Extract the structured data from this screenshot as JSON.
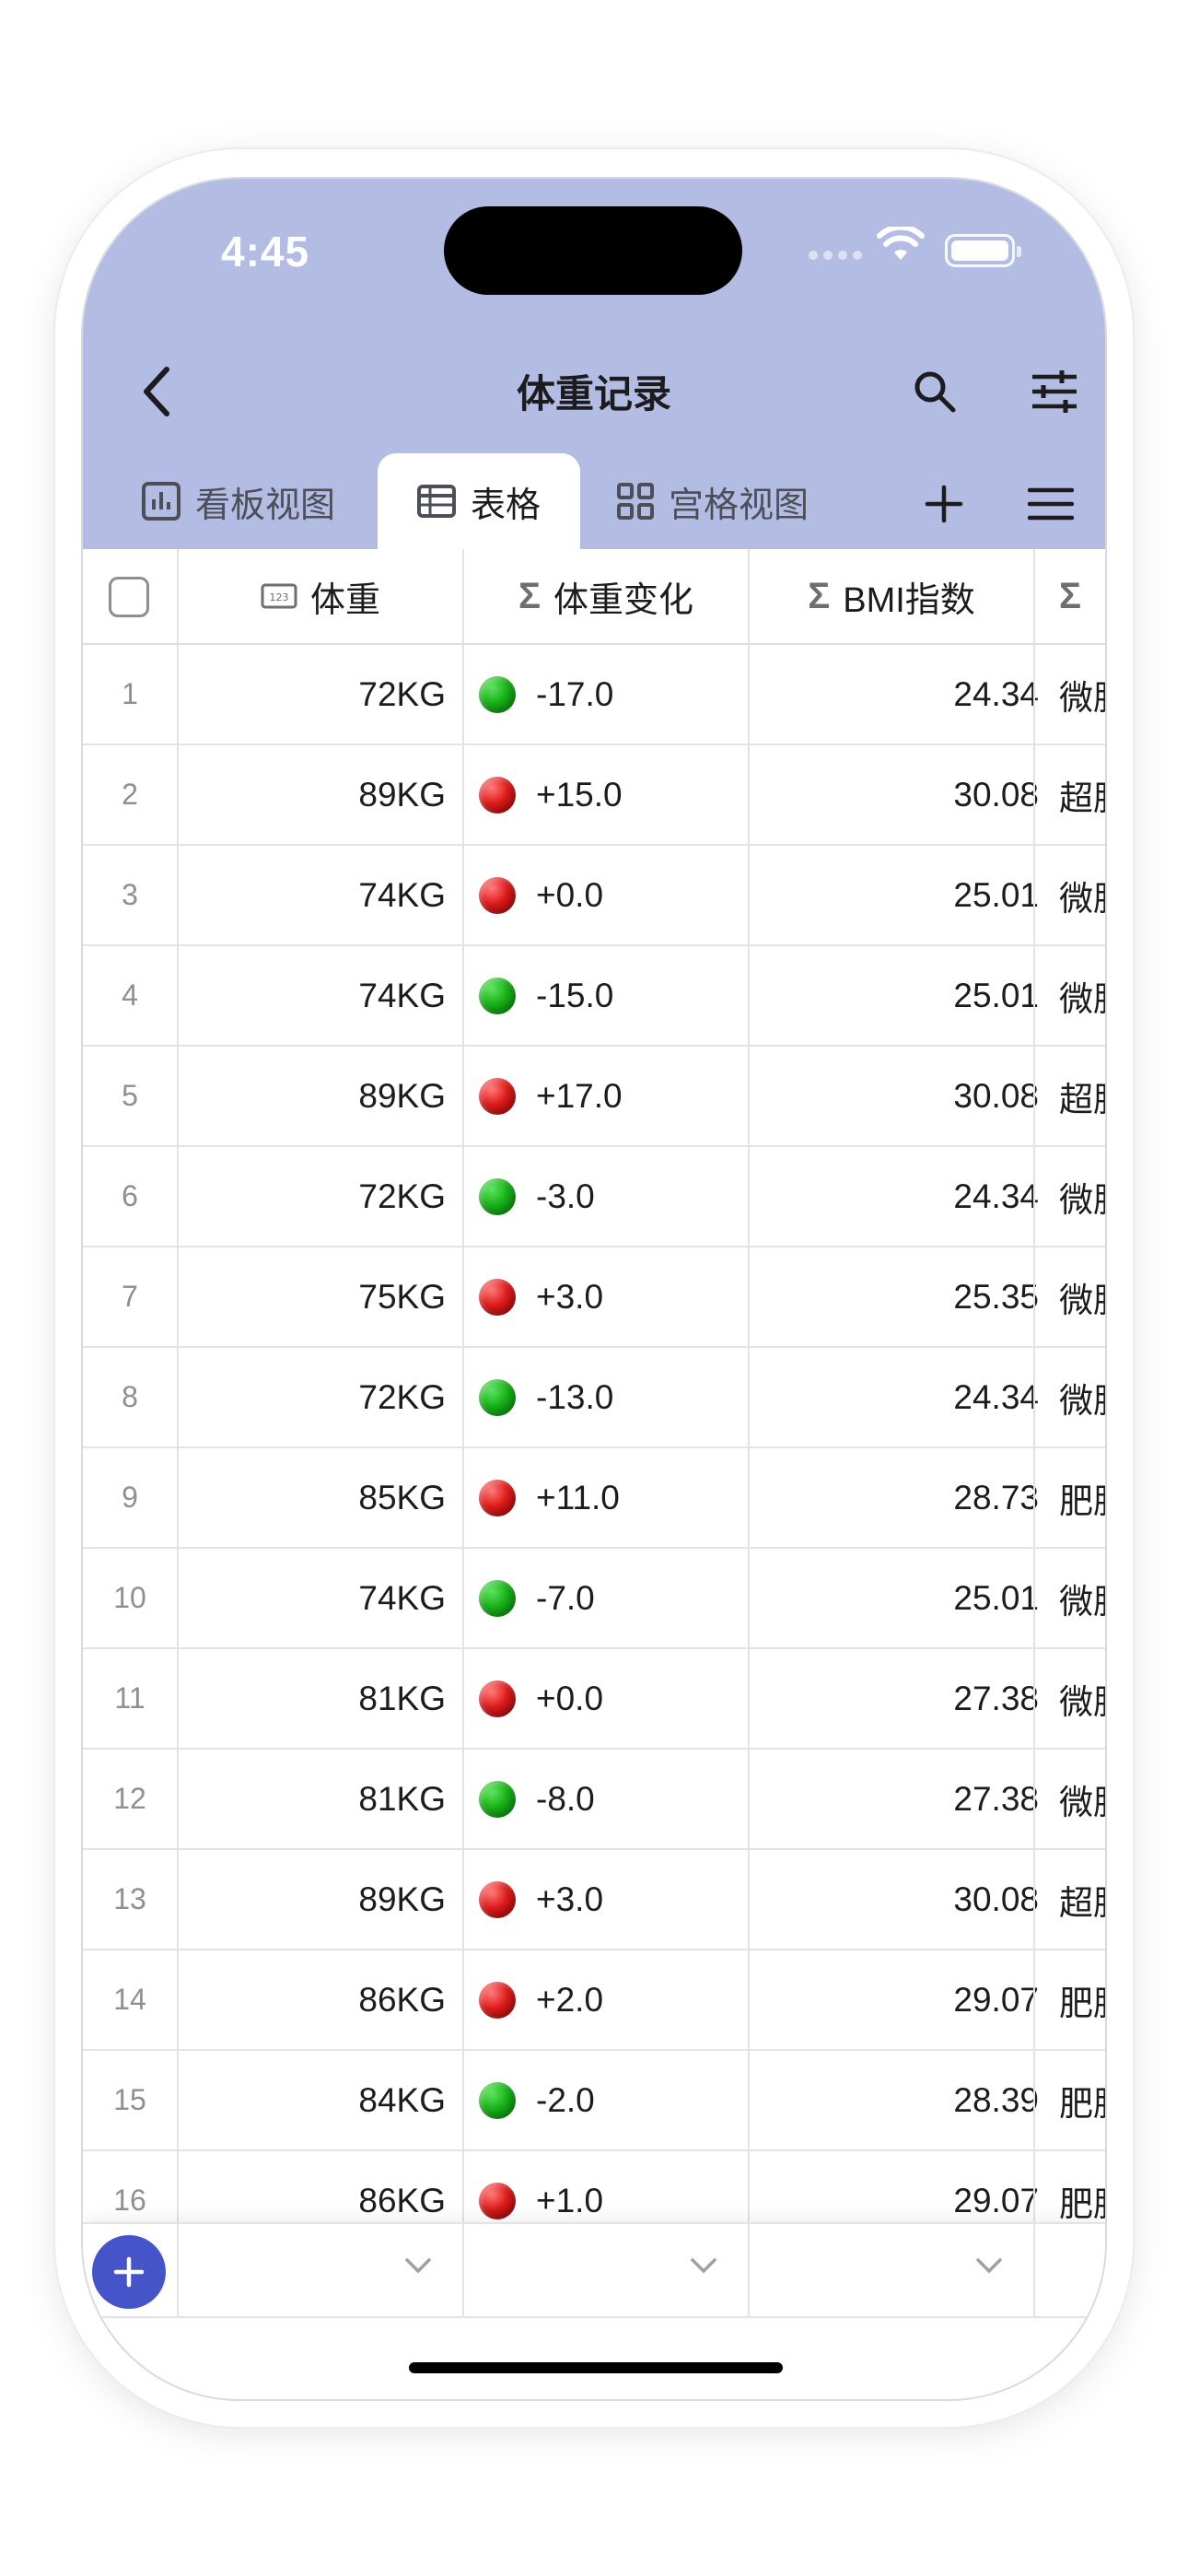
{
  "status_bar": {
    "time": "4:45"
  },
  "nav": {
    "title": "体重记录"
  },
  "tabs": [
    {
      "label": "看板视图",
      "icon": "bar-chart-icon",
      "active": false
    },
    {
      "label": "表格",
      "icon": "table-icon",
      "active": true
    },
    {
      "label": "宫格视图",
      "icon": "grid-icon",
      "active": false
    }
  ],
  "columns": {
    "weight": "体重",
    "change": "体重变化",
    "bmi": "BMI指数",
    "category": "Σ"
  },
  "rows": [
    {
      "num": "1",
      "weight": "72KG",
      "change": "-17.0",
      "status": "green",
      "bmi": "24.34",
      "category": "微胖"
    },
    {
      "num": "2",
      "weight": "89KG",
      "change": "+15.0",
      "status": "red",
      "bmi": "30.08",
      "category": "超胖"
    },
    {
      "num": "3",
      "weight": "74KG",
      "change": "+0.0",
      "status": "red",
      "bmi": "25.01",
      "category": "微胖"
    },
    {
      "num": "4",
      "weight": "74KG",
      "change": "-15.0",
      "status": "green",
      "bmi": "25.01",
      "category": "微胖"
    },
    {
      "num": "5",
      "weight": "89KG",
      "change": "+17.0",
      "status": "red",
      "bmi": "30.08",
      "category": "超胖"
    },
    {
      "num": "6",
      "weight": "72KG",
      "change": "-3.0",
      "status": "green",
      "bmi": "24.34",
      "category": "微胖"
    },
    {
      "num": "7",
      "weight": "75KG",
      "change": "+3.0",
      "status": "red",
      "bmi": "25.35",
      "category": "微胖"
    },
    {
      "num": "8",
      "weight": "72KG",
      "change": "-13.0",
      "status": "green",
      "bmi": "24.34",
      "category": "微胖"
    },
    {
      "num": "9",
      "weight": "85KG",
      "change": "+11.0",
      "status": "red",
      "bmi": "28.73",
      "category": "肥胖"
    },
    {
      "num": "10",
      "weight": "74KG",
      "change": "-7.0",
      "status": "green",
      "bmi": "25.01",
      "category": "微胖"
    },
    {
      "num": "11",
      "weight": "81KG",
      "change": "+0.0",
      "status": "red",
      "bmi": "27.38",
      "category": "微胖"
    },
    {
      "num": "12",
      "weight": "81KG",
      "change": "-8.0",
      "status": "green",
      "bmi": "27.38",
      "category": "微胖"
    },
    {
      "num": "13",
      "weight": "89KG",
      "change": "+3.0",
      "status": "red",
      "bmi": "30.08",
      "category": "超胖"
    },
    {
      "num": "14",
      "weight": "86KG",
      "change": "+2.0",
      "status": "red",
      "bmi": "29.07",
      "category": "肥胖"
    },
    {
      "num": "15",
      "weight": "84KG",
      "change": "-2.0",
      "status": "green",
      "bmi": "28.39",
      "category": "肥胖"
    },
    {
      "num": "16",
      "weight": "86KG",
      "change": "+1.0",
      "status": "red",
      "bmi": "29.07",
      "category": "肥胖"
    }
  ],
  "colors": {
    "header_bg": "#b3bce3",
    "accent": "#4554c9",
    "status_green": "#18b318",
    "status_red": "#e01b1b"
  }
}
